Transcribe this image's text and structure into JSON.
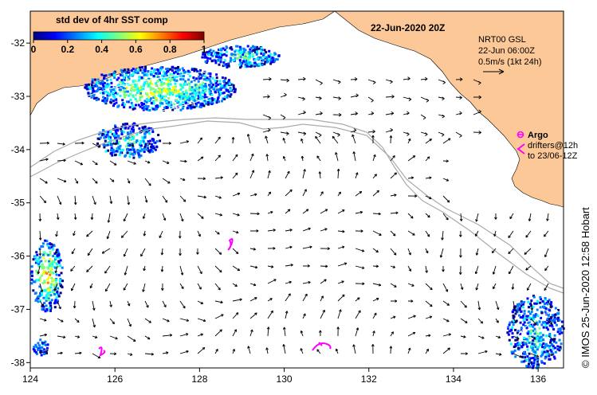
{
  "title": "22-Jun-2020 20Z",
  "colorbar": {
    "label": "std dev of 4hr SST comp",
    "ticks": [
      "0",
      "0.2",
      "0.4",
      "0.6",
      "0.8",
      "1"
    ],
    "colors": [
      "#00007f",
      "#0000ff",
      "#007fff",
      "#00ffff",
      "#7fff7f",
      "#ffff00",
      "#ff7f00",
      "#ff0000",
      "#7f0000"
    ]
  },
  "currents_info": {
    "product": "NRT00 GSL",
    "time": "22-Jun 06:00Z",
    "scale": "0.5m/s (1kt 24h)"
  },
  "argo_legend": {
    "label": "Argo",
    "drifters_line1": "drifters@12h",
    "drifters_line2": "to 23/06-12Z"
  },
  "credit": "© IMOS 25-Jun-2020 12:58 Hobart",
  "axes": {
    "x_ticks": [
      "124",
      "126",
      "128",
      "130",
      "132",
      "134",
      "136"
    ],
    "y_ticks": [
      "-32",
      "-33",
      "-34",
      "-35",
      "-36",
      "-37",
      "-38"
    ],
    "lon_range": [
      124,
      136.6
    ],
    "lat_range": [
      -38.1,
      -31.4
    ]
  },
  "colors": {
    "land": "#fdc897",
    "ocean": "#ffffff",
    "argo": "#ff00ff",
    "shelf_contour": "#aaaaaa"
  }
}
